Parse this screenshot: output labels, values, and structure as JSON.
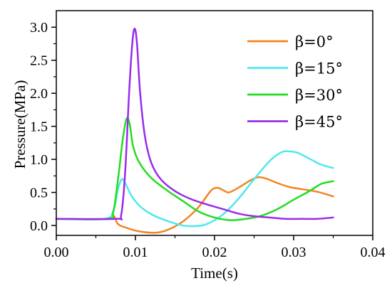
{
  "chart_data": {
    "type": "line",
    "xlabel": "Time(s)",
    "ylabel": "Pressure(MPa)",
    "xlim": [
      0.0,
      0.04
    ],
    "ylim": [
      -0.15,
      3.25
    ],
    "x_ticks": [
      "0.00",
      "0.01",
      "0.02",
      "0.03",
      "0.04"
    ],
    "x_tick_values": [
      0.0,
      0.01,
      0.02,
      0.03,
      0.04
    ],
    "y_ticks": [
      "0.0",
      "0.5",
      "1.0",
      "1.5",
      "2.0",
      "2.5",
      "3.0"
    ],
    "y_tick_values": [
      0.0,
      0.5,
      1.0,
      1.5,
      2.0,
      2.5,
      3.0
    ],
    "grid": false,
    "legend_position": "top-right",
    "series": [
      {
        "name": "β=0°",
        "color": "#f28522",
        "points": [
          [
            0.0,
            0.1
          ],
          [
            0.006,
            0.1
          ],
          [
            0.0072,
            0.15
          ],
          [
            0.0078,
            0.02
          ],
          [
            0.009,
            -0.04
          ],
          [
            0.0105,
            -0.09
          ],
          [
            0.0125,
            -0.11
          ],
          [
            0.014,
            -0.07
          ],
          [
            0.016,
            0.06
          ],
          [
            0.018,
            0.28
          ],
          [
            0.0195,
            0.52
          ],
          [
            0.0203,
            0.57
          ],
          [
            0.021,
            0.54
          ],
          [
            0.0218,
            0.5
          ],
          [
            0.023,
            0.57
          ],
          [
            0.0245,
            0.68
          ],
          [
            0.0255,
            0.73
          ],
          [
            0.0265,
            0.71
          ],
          [
            0.028,
            0.64
          ],
          [
            0.0295,
            0.58
          ],
          [
            0.031,
            0.55
          ],
          [
            0.033,
            0.51
          ],
          [
            0.035,
            0.44
          ]
        ]
      },
      {
        "name": "β=15°",
        "color": "#4ee8f0",
        "points": [
          [
            0.0,
            0.1
          ],
          [
            0.006,
            0.1
          ],
          [
            0.0072,
            0.22
          ],
          [
            0.0078,
            0.55
          ],
          [
            0.0083,
            0.7
          ],
          [
            0.0088,
            0.62
          ],
          [
            0.0095,
            0.45
          ],
          [
            0.0105,
            0.3
          ],
          [
            0.012,
            0.17
          ],
          [
            0.014,
            0.07
          ],
          [
            0.016,
            0.0
          ],
          [
            0.0175,
            -0.01
          ],
          [
            0.019,
            0.02
          ],
          [
            0.021,
            0.16
          ],
          [
            0.023,
            0.4
          ],
          [
            0.025,
            0.7
          ],
          [
            0.027,
            0.98
          ],
          [
            0.0285,
            1.11
          ],
          [
            0.0295,
            1.12
          ],
          [
            0.0305,
            1.1
          ],
          [
            0.032,
            1.01
          ],
          [
            0.0335,
            0.92
          ],
          [
            0.035,
            0.87
          ]
        ]
      },
      {
        "name": "β=30°",
        "color": "#22dd22",
        "points": [
          [
            0.0,
            0.1
          ],
          [
            0.0065,
            0.1
          ],
          [
            0.0072,
            0.2
          ],
          [
            0.0078,
            0.7
          ],
          [
            0.0084,
            1.3
          ],
          [
            0.0089,
            1.62
          ],
          [
            0.0093,
            1.52
          ],
          [
            0.0097,
            1.2
          ],
          [
            0.0105,
            0.95
          ],
          [
            0.012,
            0.72
          ],
          [
            0.014,
            0.53
          ],
          [
            0.016,
            0.37
          ],
          [
            0.018,
            0.21
          ],
          [
            0.02,
            0.12
          ],
          [
            0.022,
            0.08
          ],
          [
            0.024,
            0.1
          ],
          [
            0.026,
            0.15
          ],
          [
            0.028,
            0.25
          ],
          [
            0.03,
            0.39
          ],
          [
            0.032,
            0.52
          ],
          [
            0.0335,
            0.63
          ],
          [
            0.035,
            0.67
          ]
        ]
      },
      {
        "name": "β=45°",
        "color": "#9a2bea",
        "points": [
          [
            0.0,
            0.1
          ],
          [
            0.0075,
            0.1
          ],
          [
            0.0082,
            0.16
          ],
          [
            0.0087,
            0.8
          ],
          [
            0.0092,
            2.0
          ],
          [
            0.0096,
            2.75
          ],
          [
            0.0099,
            2.98
          ],
          [
            0.0102,
            2.75
          ],
          [
            0.0106,
            2.0
          ],
          [
            0.0112,
            1.35
          ],
          [
            0.012,
            0.95
          ],
          [
            0.0132,
            0.7
          ],
          [
            0.015,
            0.52
          ],
          [
            0.017,
            0.4
          ],
          [
            0.019,
            0.32
          ],
          [
            0.021,
            0.25
          ],
          [
            0.023,
            0.18
          ],
          [
            0.025,
            0.14
          ],
          [
            0.027,
            0.12
          ],
          [
            0.029,
            0.1
          ],
          [
            0.031,
            0.1
          ],
          [
            0.033,
            0.1
          ],
          [
            0.035,
            0.12
          ]
        ]
      }
    ]
  }
}
